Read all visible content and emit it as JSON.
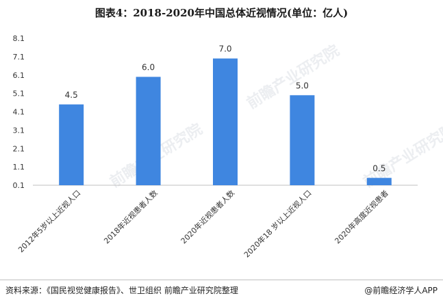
{
  "title": "图表4：2018-2020年中国总体近视情况(单位：亿人)",
  "footer": {
    "source": "资料来源：《国民视觉健康报告》、世卫组织 前瞻产业研究院整理",
    "brand": "@前瞻经济学人APP"
  },
  "watermark": "前瞻产业研究院",
  "colors": {
    "bar": "#3f86e0",
    "axis": "#bfbfbf",
    "text": "#333333"
  },
  "chart_data": {
    "type": "bar",
    "title": "图表4：2018-2020年中国总体近视情况(单位：亿人)",
    "categories": [
      "2012年5岁以上近视人口",
      "2018年近视患者人数",
      "2020年近视患者人数",
      "2020年18 岁以上近视人口",
      "2020年高度近视患者"
    ],
    "values": [
      4.5,
      6.0,
      7.0,
      5.0,
      0.5
    ],
    "data_labels": [
      "4.5",
      "6.0",
      "7.0",
      "5.0",
      "0.5"
    ],
    "yticks": [
      "0.1",
      "1.1",
      "2.1",
      "3.1",
      "4.1",
      "5.1",
      "6.1",
      "7.1",
      "8.1"
    ],
    "ylim": [
      0.1,
      8.1
    ],
    "xlabel": "",
    "ylabel": "",
    "grid": false,
    "legend": "none"
  }
}
